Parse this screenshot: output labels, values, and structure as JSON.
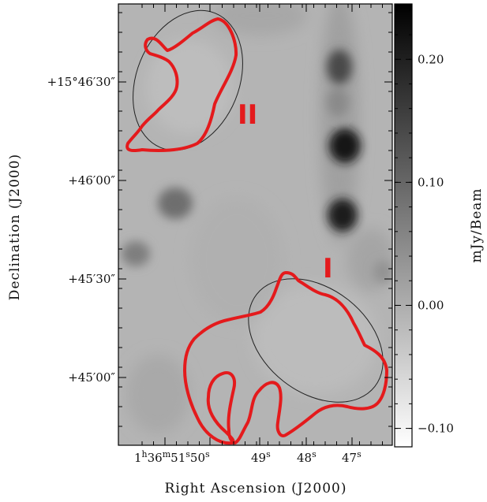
{
  "axes": {
    "xlabel": "Right Ascension (J2000)",
    "ylabel": "Declination (J2000)"
  },
  "ra_ticks": [
    {
      "h": "1",
      "m": "36",
      "s1": "51",
      "s2": "50",
      "s": "",
      "composite": true
    },
    {
      "text": "49",
      "sup": "s"
    },
    {
      "text": "48",
      "sup": "s"
    },
    {
      "text": "47",
      "sup": "s"
    }
  ],
  "dec_ticks": [
    "+15°46′30″",
    "+46′00″",
    "+45′30″",
    "+45′00″"
  ],
  "colorbar": {
    "label": "mJy/Beam",
    "ticks": [
      "0.20",
      "0.10",
      "0.00",
      "−0.10"
    ],
    "range": [
      -0.115,
      0.245
    ],
    "values": [
      0.2,
      0.1,
      0.0,
      -0.1
    ],
    "gradient": [
      "#ffffff",
      "#000000"
    ]
  },
  "regions": [
    {
      "label": "II",
      "color": "#e41a1c"
    },
    {
      "label": "I",
      "color": "#e41a1c"
    }
  ],
  "colors": {
    "contour": "#e41a1c",
    "ellipse": "#222222",
    "frame": "#000000"
  }
}
